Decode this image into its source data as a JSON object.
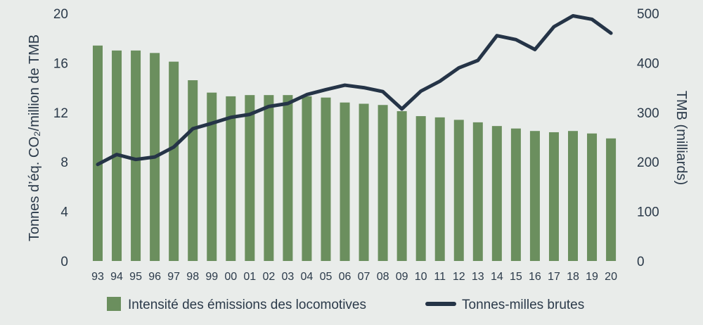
{
  "chart_data": {
    "type": "bar+line",
    "categories": [
      "93",
      "94",
      "95",
      "96",
      "97",
      "98",
      "99",
      "00",
      "01",
      "02",
      "03",
      "04",
      "05",
      "06",
      "07",
      "08",
      "09",
      "10",
      "11",
      "12",
      "13",
      "14",
      "15",
      "16",
      "17",
      "18",
      "19",
      "20"
    ],
    "series": [
      {
        "name": "Intensité des émissions des locomotives",
        "type": "bar",
        "axis": "left",
        "color": "#6b8f5e",
        "values": [
          17.4,
          17.0,
          17.0,
          16.8,
          16.1,
          14.6,
          13.6,
          13.3,
          13.4,
          13.4,
          13.4,
          13.3,
          13.2,
          12.8,
          12.7,
          12.6,
          12.1,
          11.7,
          11.6,
          11.4,
          11.2,
          10.9,
          10.7,
          10.5,
          10.4,
          10.5,
          10.3,
          9.9
        ]
      },
      {
        "name": "Tonnes-milles brutes",
        "type": "line",
        "axis": "right",
        "color": "#253447",
        "values": [
          195,
          215,
          205,
          210,
          230,
          267,
          278,
          290,
          296,
          312,
          318,
          336,
          346,
          355,
          350,
          342,
          307,
          343,
          363,
          390,
          405,
          455,
          447,
          427,
          473,
          495,
          488,
          460
        ]
      }
    ],
    "y_left": {
      "label": "Tonnes d’éq. CO₂/million de TMB",
      "range": [
        0,
        20
      ],
      "ticks": [
        "0",
        "4",
        "8",
        "12",
        "16",
        "20"
      ]
    },
    "y_right": {
      "label": "TMB (milliards)",
      "range": [
        0,
        500
      ],
      "ticks": [
        "0",
        "100",
        "200",
        "300",
        "400",
        "500"
      ]
    },
    "grid": false,
    "legend": "bottom"
  }
}
